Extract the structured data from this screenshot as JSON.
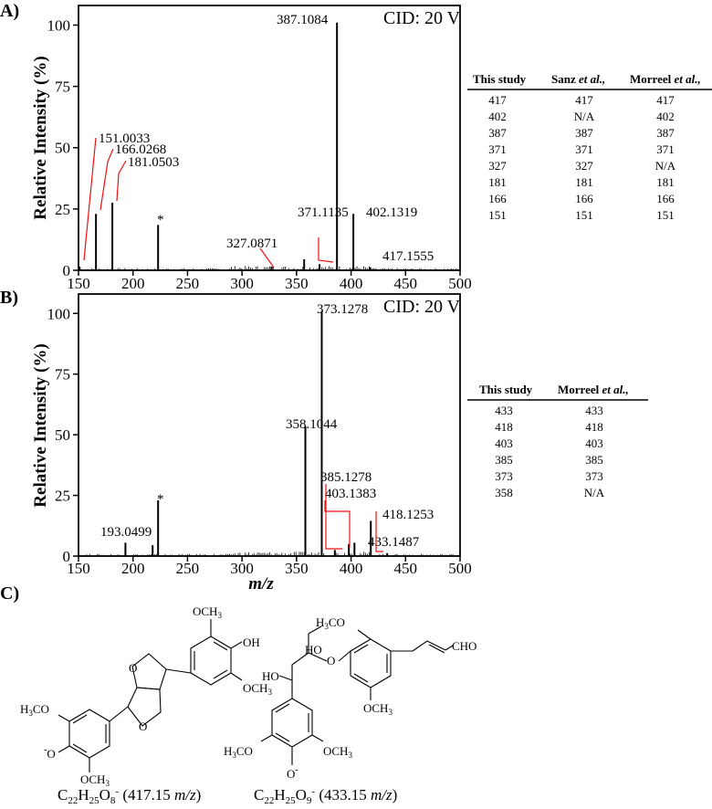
{
  "chart_data": [
    {
      "type": "spectrum",
      "panel": "A)",
      "annotation": "CID: 20 V",
      "ylabel": "Relative Intensity (%)",
      "xlabel": "",
      "xlim": [
        150,
        500
      ],
      "ylim": [
        0,
        108
      ],
      "x_ticks": [
        150,
        200,
        250,
        300,
        350,
        400,
        450,
        500
      ],
      "y_ticks": [
        0,
        25,
        50,
        75,
        100
      ],
      "peaks": [
        {
          "x": 151.0033,
          "y": 1.5,
          "label": "151.0033"
        },
        {
          "x": 166.0268,
          "y": 23,
          "label": "166.0268"
        },
        {
          "x": 181.0503,
          "y": 27.5,
          "label": "181.0503"
        },
        {
          "x": 223.0,
          "y": 18.5,
          "label": "*"
        },
        {
          "x": 327.0871,
          "y": 1.5,
          "label": "327.0871"
        },
        {
          "x": 357.0,
          "y": 4.5,
          "label": ""
        },
        {
          "x": 371.1135,
          "y": 2.5,
          "label": "371.1135"
        },
        {
          "x": 387.1084,
          "y": 101,
          "label": "387.1084"
        },
        {
          "x": 402.1319,
          "y": 23,
          "label": "402.1319"
        },
        {
          "x": 417.1555,
          "y": 1.2,
          "label": "417.1555"
        }
      ]
    },
    {
      "type": "spectrum",
      "panel": "B)",
      "annotation": "CID: 20 V",
      "ylabel": "Relative Intensity (%)",
      "xlabel": "m/z",
      "xlim": [
        150,
        500
      ],
      "ylim": [
        0,
        108
      ],
      "x_ticks": [
        150,
        200,
        250,
        300,
        350,
        400,
        450,
        500
      ],
      "y_ticks": [
        0,
        25,
        50,
        75,
        100
      ],
      "peaks": [
        {
          "x": 193.0499,
          "y": 5.5,
          "label": "193.0499"
        },
        {
          "x": 218.0,
          "y": 4.5,
          "label": ""
        },
        {
          "x": 223.0,
          "y": 23,
          "label": "*"
        },
        {
          "x": 358.1044,
          "y": 53.5,
          "label": "358.1044"
        },
        {
          "x": 373.1278,
          "y": 101,
          "label": "373.1278"
        },
        {
          "x": 385.1278,
          "y": 2.5,
          "label": "385.1278"
        },
        {
          "x": 398.0,
          "y": 5.0,
          "label": ""
        },
        {
          "x": 403.1383,
          "y": 5.5,
          "label": "403.1383"
        },
        {
          "x": 418.1253,
          "y": 14.5,
          "label": "418.1253"
        },
        {
          "x": 433.1487,
          "y": 1.2,
          "label": "433.1487"
        }
      ]
    }
  ],
  "tables": [
    {
      "headers": [
        "This study",
        "Sanz",
        "et al.,",
        "Morreel",
        "et al.,"
      ],
      "rows": [
        [
          "417",
          "417",
          "417"
        ],
        [
          "402",
          "N/A",
          "402"
        ],
        [
          "387",
          "387",
          "387"
        ],
        [
          "371",
          "371",
          "371"
        ],
        [
          "327",
          "327",
          "N/A"
        ],
        [
          "181",
          "181",
          "181"
        ],
        [
          "166",
          "166",
          "166"
        ],
        [
          "151",
          "151",
          "151"
        ]
      ]
    },
    {
      "headers": [
        "This study",
        "Morreel",
        "et al.,"
      ],
      "rows": [
        [
          "433",
          "433"
        ],
        [
          "418",
          "418"
        ],
        [
          "403",
          "403"
        ],
        [
          "385",
          "385"
        ],
        [
          "373",
          "373"
        ],
        [
          "358",
          "N/A"
        ]
      ]
    }
  ],
  "structures": {
    "panel": "C)",
    "left": {
      "och3_top": "OCH",
      "sub3": "3",
      "oh": "OH",
      "och3_right": "OCH",
      "h3c": "H",
      "h3c_sub": "3",
      "h3c_co": "CO",
      "o_ring1": "O",
      "o_ring2": "O",
      "o_minus": "O",
      "minus": "-",
      "och3_bottom": "OCH",
      "formula_c": "C",
      "c_sub": "22",
      "formula_h": "H",
      "h_sub": "25",
      "formula_o": "O",
      "o_sub": "8",
      "charge": "-",
      "mass_text": " (417.15 ",
      "mz": "m/z",
      "close": ")"
    },
    "right": {
      "ho": "HO",
      "ho2": "HO",
      "h3co_top": "H",
      "h3co_top_sub": "3",
      "h3co_top_co": "CO",
      "cho": "CHO",
      "o_link": "O",
      "och3_r": "OCH",
      "sub3": "3",
      "h3co_bot": "H",
      "h3co_bot_sub": "3",
      "h3co_bot_co": "CO",
      "och3_bot": "OCH",
      "o_minus": "O",
      "minus": "-",
      "formula_c": "C",
      "c_sub": "22",
      "formula_h": "H",
      "h_sub": "25",
      "formula_o": "O",
      "o_sub": "9",
      "charge": "-",
      "mass_text": " (433.15 ",
      "mz": "m/z",
      "close": ")"
    }
  }
}
